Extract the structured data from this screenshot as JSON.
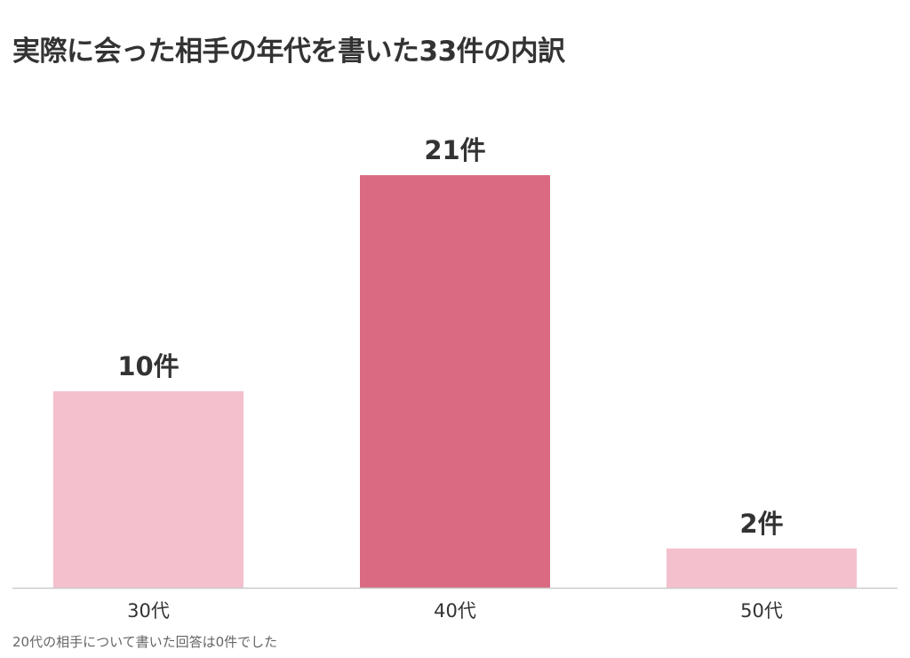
{
  "title": "実際に会った相手の年代を書いた33件の内訳",
  "footnote": "20代の相手について書いた回答は0件でした",
  "colors": {
    "bar_normal": "#f4c0cd",
    "bar_highlight": "#da6a81",
    "axis": "#cccccc",
    "label_text": "#333333",
    "footnote_text": "#666666"
  },
  "chart_data": {
    "type": "bar",
    "title": "実際に会った相手の年代を書いた33件の内訳",
    "categories": [
      "30代",
      "40代",
      "50代"
    ],
    "values": [
      10,
      21,
      2
    ],
    "data_labels": [
      "10件",
      "21件",
      "2件"
    ],
    "highlight_index": 1,
    "ylim": [
      0,
      21
    ],
    "grid": false,
    "legend": false,
    "xlabel": "",
    "ylabel": ""
  }
}
